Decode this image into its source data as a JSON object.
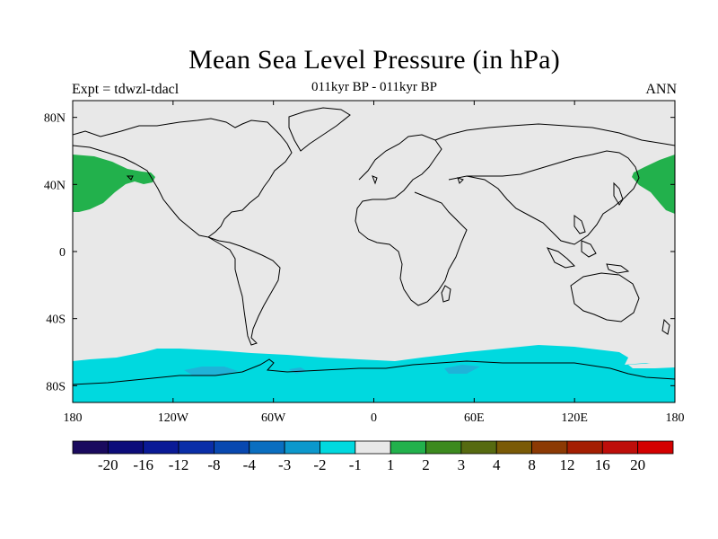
{
  "title": "Mean Sea Level Pressure (in hPa)",
  "subtitle_left": "Expt = tdwzl-tdacl",
  "subtitle_center": "011kyr BP - 011kyr BP",
  "subtitle_right": "ANN",
  "map": {
    "background_color": "#e8e8e8",
    "lon_ticks": [
      "180",
      "120W",
      "60W",
      "0",
      "60E",
      "120E",
      "180"
    ],
    "lat_ticks": [
      "80N",
      "40N",
      "0",
      "40S",
      "80S"
    ],
    "anomaly_colors": {
      "positive": "#22b14c",
      "negative": "#00d9df",
      "strong_negative": "#1fb3d8"
    }
  },
  "colorbar": {
    "labels": [
      "-20",
      "-16",
      "-12",
      "-8",
      "-4",
      "-3",
      "-2",
      "-1",
      "1",
      "2",
      "3",
      "4",
      "8",
      "12",
      "16",
      "20"
    ],
    "colors": [
      "#1a0a5e",
      "#0c0c7a",
      "#0a1a96",
      "#0a2ea8",
      "#0848b0",
      "#0a6ec0",
      "#0c98cc",
      "#00d9df",
      "#e8e8e8",
      "#22b14c",
      "#3c8a1e",
      "#566a10",
      "#7a5a06",
      "#8c3a04",
      "#a41e02",
      "#be0e0a",
      "#d40000"
    ]
  }
}
